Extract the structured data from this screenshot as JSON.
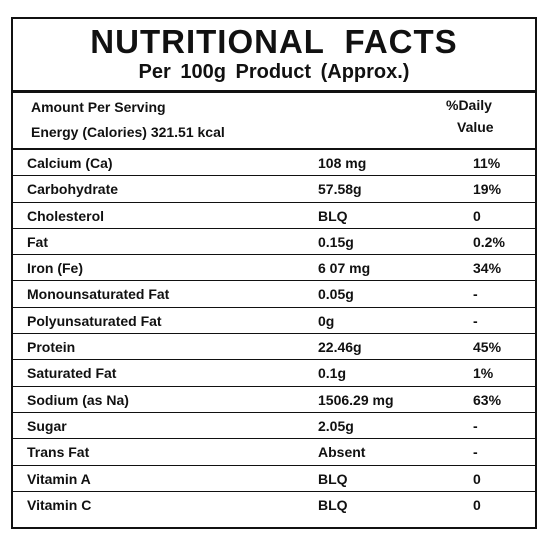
{
  "title": "NUTRITIONAL FACTS",
  "subtitle": "Per 100g Product (Approx.)",
  "header": {
    "amount_per_serving": "Amount Per Serving",
    "energy": "Energy (Calories) 321.51 kcal",
    "daily_value_line1": "%Daily",
    "daily_value_line2": "Value"
  },
  "rows": [
    {
      "nutrient": "Calcium (Ca)",
      "amount": "108 mg",
      "daily_value": "11%"
    },
    {
      "nutrient": "Carbohydrate",
      "amount": "57.58g",
      "daily_value": "19%"
    },
    {
      "nutrient": "Cholesterol",
      "amount": "BLQ",
      "daily_value": "0"
    },
    {
      "nutrient": "Fat",
      "amount": "0.15g",
      "daily_value": "0.2%"
    },
    {
      "nutrient": "Iron (Fe)",
      "amount": "6 07 mg",
      "daily_value": "34%"
    },
    {
      "nutrient": "Monounsaturated Fat",
      "amount": "0.05g",
      "daily_value": "-"
    },
    {
      "nutrient": "Polyunsaturated Fat",
      "amount": "0g",
      "daily_value": "-"
    },
    {
      "nutrient": "Protein",
      "amount": "22.46g",
      "daily_value": "45%"
    },
    {
      "nutrient": "Saturated Fat",
      "amount": "0.1g",
      "daily_value": "1%"
    },
    {
      "nutrient": "Sodium (as Na)",
      "amount": "1506.29 mg",
      "daily_value": "63%"
    },
    {
      "nutrient": "Sugar",
      "amount": "2.05g",
      "daily_value": "-"
    },
    {
      "nutrient": "Trans Fat",
      "amount": "Absent",
      "daily_value": "-"
    },
    {
      "nutrient": "Vitamin A",
      "amount": "BLQ",
      "daily_value": "0"
    },
    {
      "nutrient": "Vitamin C",
      "amount": "BLQ",
      "daily_value": "0"
    }
  ]
}
